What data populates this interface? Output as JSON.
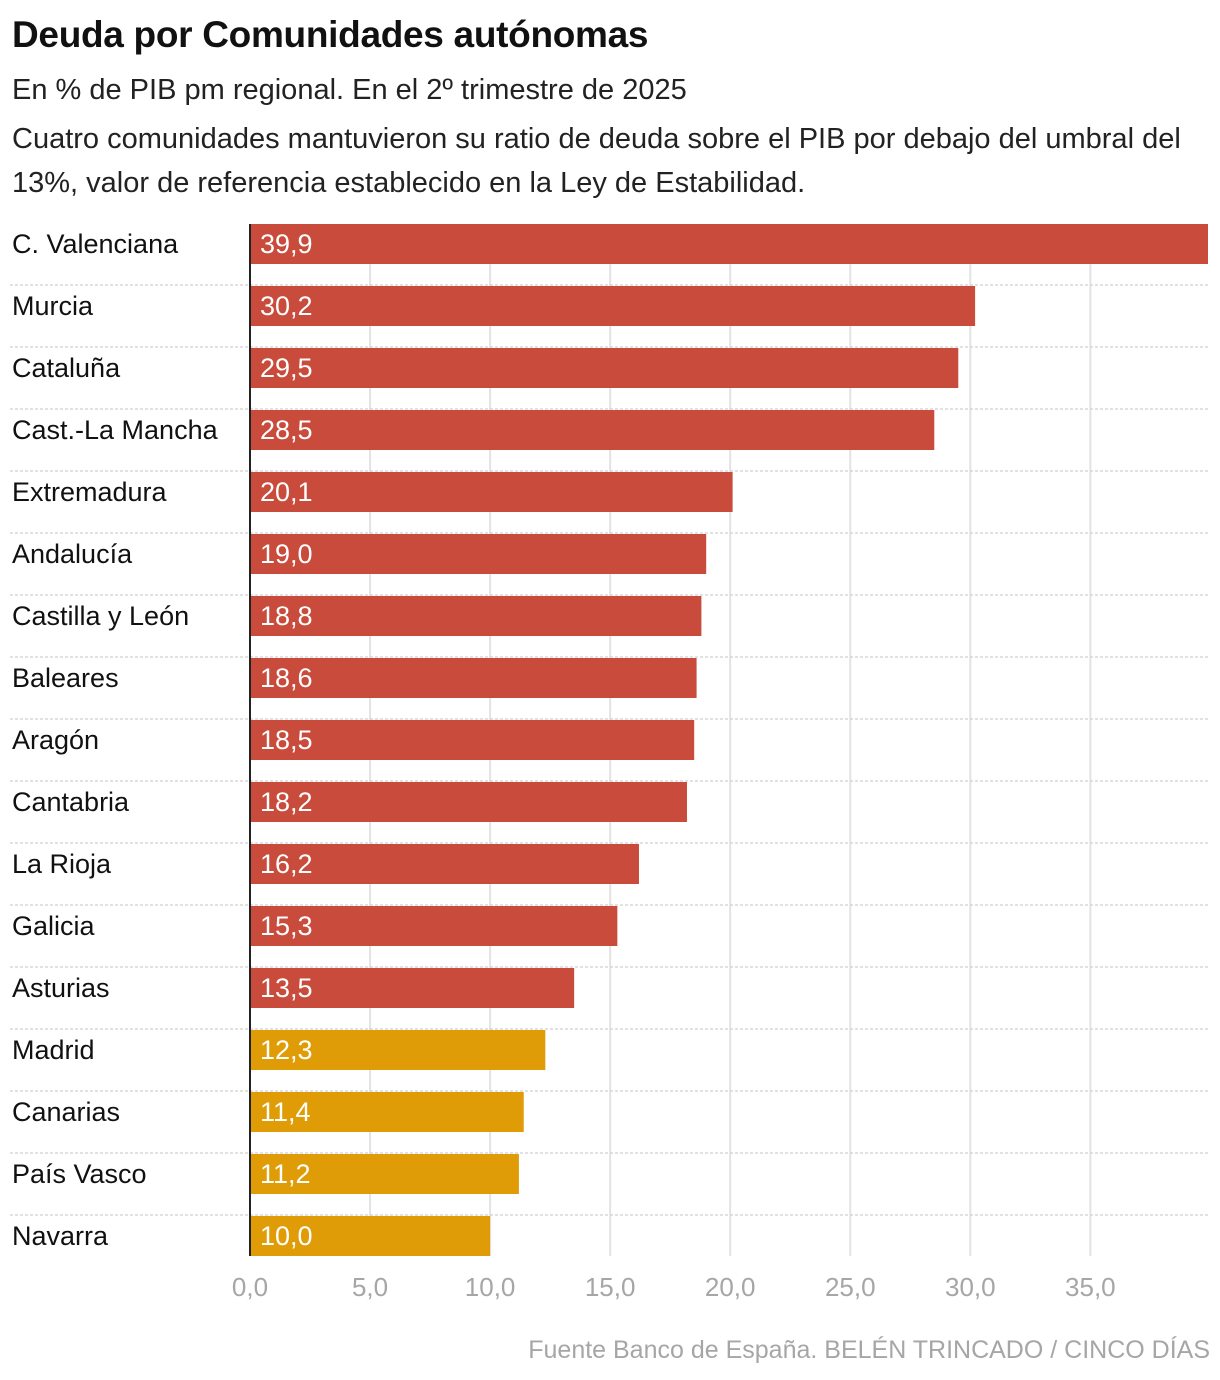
{
  "header": {
    "title": "Deuda por Comunidades autónomas",
    "subtitle": "En % de PIB pm regional. En el 2º trimestre de 2025",
    "description": "Cuatro comunidades mantuvieron su ratio de deuda sobre el PIB por debajo del umbral del 13%, valor de referencia establecido en la Ley de Estabilidad."
  },
  "chart_data": {
    "type": "bar",
    "orientation": "horizontal",
    "categories": [
      "C. Valenciana",
      "Murcia",
      "Cataluña",
      "Cast.-La Mancha",
      "Extremadura",
      "Andalucía",
      "Castilla y León",
      "Baleares",
      "Aragón",
      "Cantabria",
      "La Rioja",
      "Galicia",
      "Asturias",
      "Madrid",
      "Canarias",
      "País Vasco",
      "Navarra"
    ],
    "values": [
      39.9,
      30.2,
      29.5,
      28.5,
      20.1,
      19.0,
      18.8,
      18.6,
      18.5,
      18.2,
      16.2,
      15.3,
      13.5,
      12.3,
      11.4,
      11.2,
      10.0
    ],
    "value_labels": [
      "39,9",
      "30,2",
      "29,5",
      "28,5",
      "20,1",
      "19,0",
      "18,8",
      "18,6",
      "18,5",
      "18,2",
      "16,2",
      "15,3",
      "13,5",
      "12,3",
      "11,4",
      "11,2",
      "10,0"
    ],
    "x_ticks": [
      0,
      5,
      10,
      15,
      20,
      25,
      30,
      35
    ],
    "x_tick_labels": [
      "0,0",
      "5,0",
      "10,0",
      "15,0",
      "20,0",
      "25,0",
      "30,0",
      "35,0"
    ],
    "xlim": [
      0,
      39.9
    ],
    "threshold": 13,
    "colors": {
      "above": "#c84b3c",
      "below": "#e09c06"
    },
    "grid": true,
    "title": "Deuda por Comunidades autónomas",
    "xlabel": "",
    "ylabel": ""
  },
  "footer": {
    "source": "Fuente Banco de España. BELÉN TRINCADO / CINCO DÍAS"
  }
}
